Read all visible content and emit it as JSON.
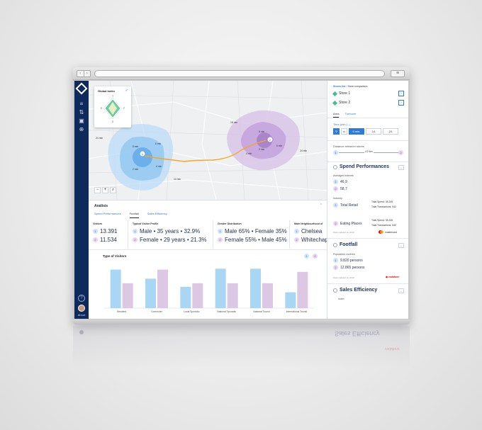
{
  "sidebar": {
    "about_label": "About"
  },
  "map": {
    "global_index": {
      "title": "Global Index",
      "axis_labels": [
        "T",
        "F",
        "S",
        "E"
      ]
    },
    "controls": [
      "−",
      "+",
      "⌕"
    ],
    "labels": [
      "8 min",
      "6 min",
      "4 min",
      "2 min",
      "8 min",
      "6 min",
      "4 min",
      "2 min",
      "24 min",
      "14 min",
      "24 min",
      "18 min"
    ]
  },
  "analysis": {
    "title": "Análisis",
    "tabs": [
      "Spend Performances",
      "Footfall",
      "Sales Efficiency"
    ],
    "active_tab": 1,
    "columns": {
      "visitors": {
        "header": "Visitors",
        "store1": "13.391",
        "store2": "11.534"
      },
      "profile": {
        "header": "Typical Visitor Profile",
        "store1": "Male • 35 years • 32.9%",
        "store2": "Female • 29 years • 21.3%"
      },
      "gender": {
        "header": "Gender Distribution",
        "store1": "Male 65% • Female 35%",
        "store2": "Female 55% • Male 45%"
      },
      "neighbourhood": {
        "header": "Main Neighbourhood of",
        "store1": "Chelsea",
        "store2": "Whitechap"
      }
    }
  },
  "visitors_chart": {
    "title": "Type of Visitors"
  },
  "chart_data": {
    "type": "bar",
    "title": "Type of Visitors",
    "categories": [
      "Resident",
      "Commuter",
      "Local Sporadic",
      "National Sporadic",
      "National Tourist",
      "International Tourist"
    ],
    "series": [
      {
        "values": [
          85,
          65,
          47,
          87,
          87,
          35
        ]
      },
      {
        "values": [
          55,
          85,
          55,
          55,
          55,
          80
        ]
      }
    ],
    "ylim": [
      0,
      100
    ],
    "grid": false,
    "colors": [
      "#a9d6f5",
      "#dcc7e4"
    ]
  },
  "right_panel": {
    "breadcrumb_link": "Stores list",
    "breadcrumb_current": "Store comparison",
    "store1": "Store 1",
    "store2": "Store 2",
    "tabs": [
      "Area",
      "Turnover"
    ],
    "time_label": "Time (min.)",
    "time_options": [
      "6 min.",
      "14",
      "24"
    ],
    "distance_label": "Distance between stores",
    "distance_value": "4.2 km",
    "spend": {
      "title": "Spend Performances",
      "averages_label": "Averages Indexes",
      "avg1": "46,9",
      "avg2": "58,7",
      "industry_label": "Industry",
      "industry1": "Total Retail",
      "industry2": "Eating Places",
      "total_spend_1": "Total Spend: 35.245",
      "total_tx_1": "Total Transactions: 542",
      "total_spend_2": "Total Spend: 35.245",
      "total_tx_2": "Total Transactions: 542",
      "source": "Data updated on 2018",
      "brand": "mastercard"
    },
    "footfall": {
      "title": "Footfall",
      "pop_label": "Population covered",
      "pop1": "9.820 persons",
      "pop2": "12.865 persons",
      "source": "Data updated on 2018",
      "brand": "vodafone"
    },
    "sales": {
      "title": "Sales Efficiency",
      "index_label": "Index"
    }
  },
  "colors": {
    "sidebar": "#0e2a5c",
    "accent": "#2f7bd6",
    "store1": "#a9d6f5",
    "store2": "#dcc7e4",
    "route": "#f5a623"
  }
}
